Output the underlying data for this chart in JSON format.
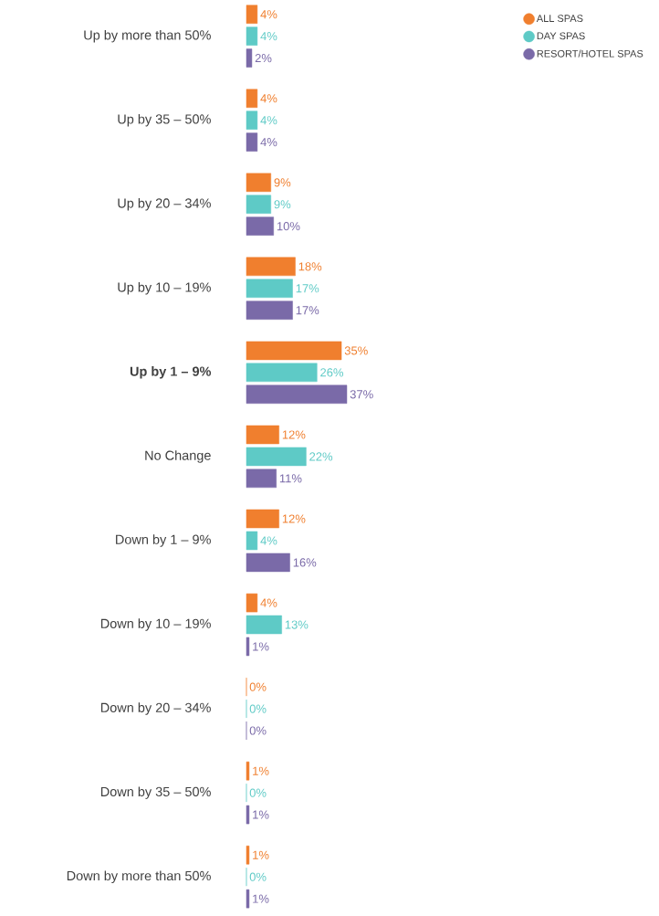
{
  "chart_data": {
    "type": "bar",
    "orientation": "horizontal",
    "data_labels": true,
    "legend": "top right",
    "tick_labels": "y",
    "categories": [
      "Up by more than 50%",
      "Up by 35 – 50%",
      "Up by 20 – 34%",
      "Up by 10 – 19%",
      "**Up by 1 – 9%**",
      "No Change",
      "Down by 1 – 9%",
      "Down by 10 – 19%",
      "Down by 20 – 34%",
      "Down by 35 – 50%",
      "Down by more than 50%"
    ],
    "series": [
      {
        "name": "ALL SPAS",
        "color": "#f07f2e",
        "values": [
          4,
          4,
          9,
          18,
          35,
          12,
          12,
          4,
          0,
          1,
          1
        ],
        "value_labels": [
          "4%",
          "4%",
          "9%",
          "18%",
          "35%",
          "12%",
          "12%",
          "4%",
          "0%",
          "1%",
          "1%"
        ]
      },
      {
        "name": "DAY SPAS",
        "color": "#5ecac6",
        "values": [
          4,
          4,
          9,
          17,
          26,
          22,
          4,
          13,
          0,
          0,
          0
        ],
        "value_labels": [
          "4%",
          "4%",
          "9%",
          "17%",
          "26%",
          "22%",
          "4%",
          "13%",
          "0%",
          "0%",
          "0%"
        ]
      },
      {
        "name": "RESORT/HOTEL SPAS",
        "color": "#7a6aa8",
        "values": [
          2,
          4,
          10,
          17,
          37,
          11,
          16,
          1,
          0,
          1,
          1
        ],
        "value_labels": [
          "2%",
          "4%",
          "10%",
          "17%",
          "37%",
          "11%",
          "16%",
          "1%",
          "0%",
          "1%",
          "1%"
        ]
      }
    ]
  }
}
